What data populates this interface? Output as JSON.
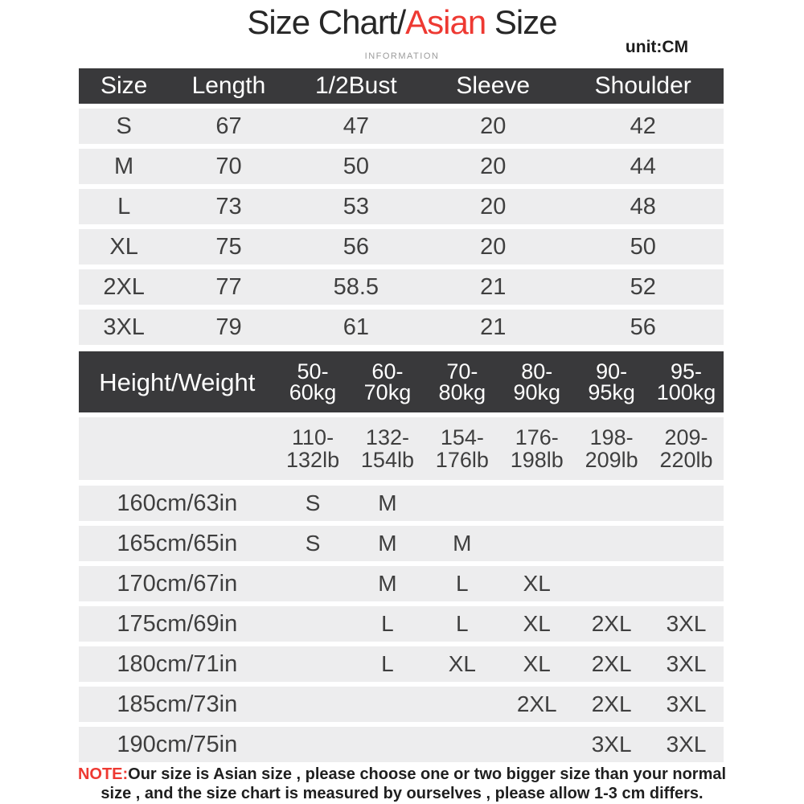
{
  "page": {
    "title_part1": "Size Chart/",
    "title_accent": "Asian",
    "title_part2": " Size",
    "subtitle": "INFORMATION",
    "unit_label": "unit:CM"
  },
  "colors": {
    "accent_red": "#ee3932",
    "header_dark": "#39393b",
    "row_gray": "#ededee"
  },
  "size_table": {
    "headers": [
      "Size",
      "Length",
      "1/2Bust",
      "Sleeve",
      "Shoulder"
    ],
    "rows": [
      [
        "S",
        "67",
        "47",
        "20",
        "42"
      ],
      [
        "M",
        "70",
        "50",
        "20",
        "44"
      ],
      [
        "L",
        "73",
        "53",
        "20",
        "48"
      ],
      [
        "XL",
        "75",
        "56",
        "20",
        "50"
      ],
      [
        "2XL",
        "77",
        "58.5",
        "21",
        "52"
      ],
      [
        "3XL",
        "79",
        "61",
        "21",
        "56"
      ]
    ]
  },
  "fit_table": {
    "corner_header": "Height/Weight",
    "weight_headers": [
      "50-\n60kg",
      "60-\n70kg",
      "70-\n80kg",
      "80-\n90kg",
      "90-\n95kg",
      "95-\n100kg"
    ],
    "lb_row": [
      "110-\n132lb",
      "132-\n154lb",
      "154-\n176lb",
      "176-\n198lb",
      "198-\n209lb",
      "209-\n220lb"
    ],
    "rows": [
      {
        "label": "160cm/63in",
        "cells": [
          "S",
          "M",
          "",
          "",
          "",
          ""
        ]
      },
      {
        "label": "165cm/65in",
        "cells": [
          "S",
          "M",
          "M",
          "",
          "",
          ""
        ]
      },
      {
        "label": "170cm/67in",
        "cells": [
          "",
          "M",
          "L",
          "XL",
          "",
          ""
        ]
      },
      {
        "label": "175cm/69in",
        "cells": [
          "",
          "L",
          "L",
          "XL",
          "2XL",
          "3XL"
        ]
      },
      {
        "label": "180cm/71in",
        "cells": [
          "",
          "L",
          "XL",
          "XL",
          "2XL",
          "3XL"
        ]
      },
      {
        "label": "185cm/73in",
        "cells": [
          "",
          "",
          "",
          "2XL",
          "2XL",
          "3XL"
        ]
      },
      {
        "label": "190cm/75in",
        "cells": [
          "",
          "",
          "",
          "",
          "3XL",
          "3XL"
        ]
      }
    ]
  },
  "note": {
    "label": "NOTE:",
    "line1": "Our size is Asian size , please choose one or two bigger size than your normal",
    "line2": "size , and the size chart is measured by ourselves , please allow 1-3 cm differs."
  }
}
